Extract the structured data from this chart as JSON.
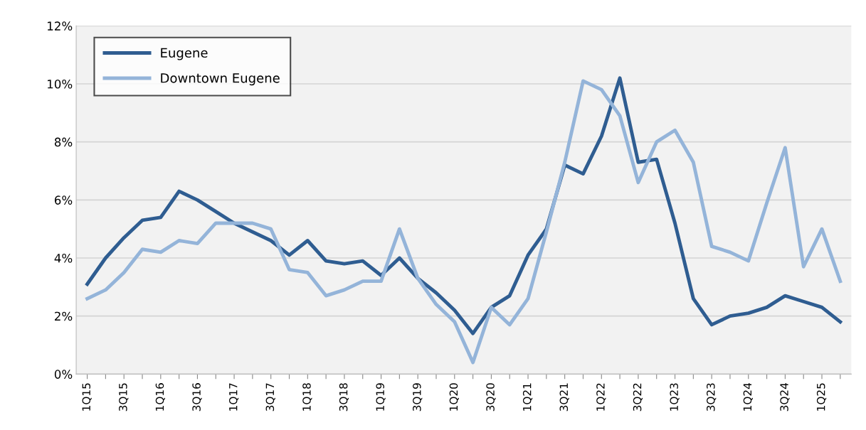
{
  "chart_data": {
    "type": "line",
    "categories": [
      "1Q15",
      null,
      "3Q15",
      null,
      "1Q16",
      null,
      "3Q16",
      null,
      "1Q17",
      null,
      "3Q17",
      null,
      "1Q18",
      null,
      "3Q18",
      null,
      "1Q19",
      null,
      "3Q19",
      null,
      "1Q20",
      null,
      "3Q20",
      null,
      "1Q21",
      null,
      "3Q21",
      null,
      "1Q22",
      null,
      "3Q22",
      null,
      "1Q23",
      null,
      "3Q23",
      null,
      "1Q24",
      null,
      "3Q24",
      null,
      "1Q25",
      null
    ],
    "series": [
      {
        "name": "Eugene",
        "color": "#2f5d91",
        "values": [
          3.1,
          4.0,
          4.7,
          5.3,
          5.4,
          6.3,
          6.0,
          5.6,
          5.2,
          4.9,
          4.6,
          4.1,
          4.6,
          3.9,
          3.8,
          3.9,
          3.4,
          4.0,
          3.3,
          2.8,
          2.2,
          1.4,
          2.3,
          2.7,
          4.1,
          5.0,
          7.2,
          6.9,
          8.2,
          10.2,
          7.3,
          7.4,
          5.2,
          2.6,
          1.7,
          2.0,
          2.1,
          2.3,
          2.7,
          2.5,
          2.3,
          1.8
        ]
      },
      {
        "name": "Downtown Eugene",
        "color": "#94b4d9",
        "values": [
          2.6,
          2.9,
          3.5,
          4.3,
          4.2,
          4.6,
          4.5,
          5.2,
          5.2,
          5.2,
          5.0,
          3.6,
          3.5,
          2.7,
          2.9,
          3.2,
          3.2,
          5.0,
          3.3,
          2.4,
          1.8,
          0.4,
          2.3,
          1.7,
          2.6,
          4.9,
          7.3,
          10.1,
          9.8,
          8.9,
          6.6,
          8.0,
          8.4,
          7.3,
          4.4,
          4.2,
          3.9,
          5.9,
          7.8,
          3.7,
          5.0,
          3.2
        ]
      }
    ],
    "ylim": [
      0,
      12
    ],
    "yticks": [
      {
        "value": 0,
        "label": "0%"
      },
      {
        "value": 2,
        "label": "2%"
      },
      {
        "value": 4,
        "label": "4%"
      },
      {
        "value": 6,
        "label": "6%"
      },
      {
        "value": 8,
        "label": "8%"
      },
      {
        "value": 10,
        "label": "10%"
      },
      {
        "value": 12,
        "label": "12%"
      }
    ],
    "grid": "y",
    "legend": "top left",
    "line_style": "solid",
    "marker": "none"
  }
}
